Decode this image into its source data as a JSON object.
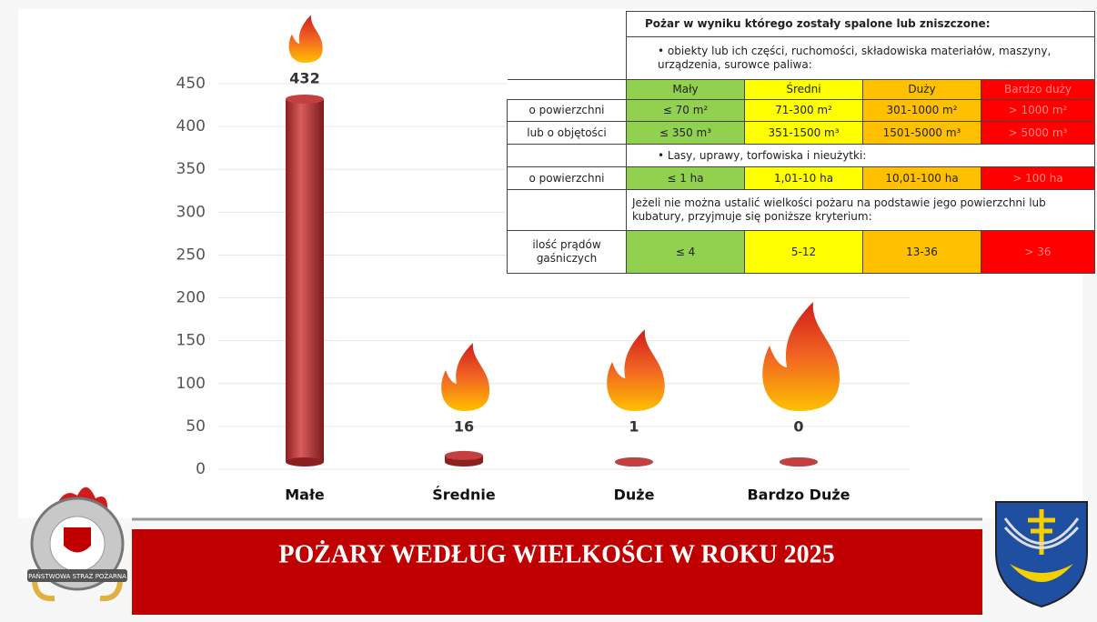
{
  "chart_data": {
    "type": "bar",
    "categories": [
      "Małe",
      "Średnie",
      "Duże",
      "Bardzo Duże"
    ],
    "values": [
      432,
      16,
      1,
      0
    ],
    "color": "#b83232",
    "ylim": [
      0,
      450
    ],
    "yticks": [
      0,
      50,
      100,
      150,
      200,
      250,
      300,
      350,
      400,
      450
    ],
    "grid": true
  },
  "table": {
    "title": "Pożar w wyniku którego zostały spalone lub zniszczone:",
    "rows": [
      {
        "span": "•    obiekty lub ich części, ruchomości, składowiska materiałów, maszyny, urządzenia, surowce paliwa:"
      },
      {
        "cells": [
          "Mały",
          "Średni",
          "Duży",
          "Bardzo duży"
        ]
      },
      {
        "label": "o powierzchni",
        "cells": [
          "≤ 70 m²",
          "71-300 m²",
          "301-1000 m²",
          "> 1000 m²"
        ]
      },
      {
        "label": "lub o objętości",
        "cells": [
          "≤ 350 m³",
          "351-1500 m³",
          "1501-5000 m³",
          "> 5000 m³"
        ]
      },
      {
        "span": "•    Lasy, uprawy, torfowiska i nieużytki:"
      },
      {
        "label": "o powierzchni",
        "cells": [
          "≤ 1 ha",
          "1,01-10 ha",
          "10,01-100 ha",
          "> 100 ha"
        ]
      },
      {
        "span": "Jeżeli nie można ustalić wielkości pożaru na podstawie jego powierzchni lub kubatury, przyjmuje się poniższe kryterium:"
      },
      {
        "label": "ilość prądów gaśniczych",
        "cells": [
          "≤ 4",
          "5-12",
          "13-36",
          "> 36"
        ]
      }
    ]
  },
  "banner": {
    "title": "POŻARY WEDŁUG WIELKOŚCI W ROKU 2025"
  },
  "logo": {
    "text": "PAŃSTWOWA STRAŻ POŻARNA"
  }
}
